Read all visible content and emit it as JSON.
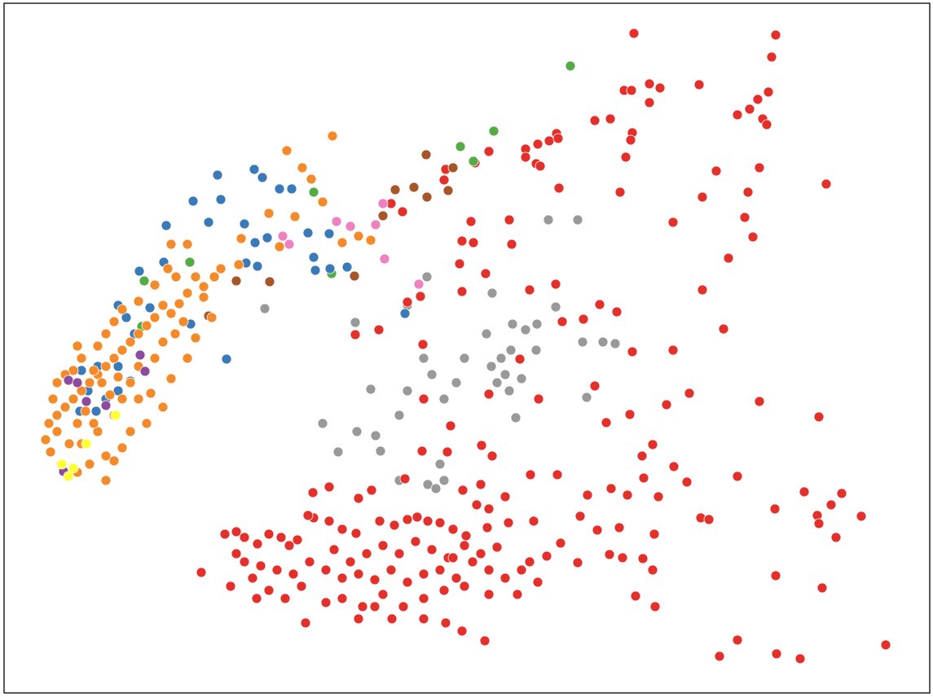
{
  "chart_data": {
    "type": "scatter",
    "xlim": [
      5,
      1141
    ],
    "ylim": [
      851,
      4
    ],
    "series": [
      {
        "color": "#999999",
        "x": [
          673,
          709,
          524,
          604,
          325,
          436,
          682,
          659,
          629,
          597,
          645,
          658,
          715,
          740,
          755,
          627,
          615,
          603,
          620,
          640,
          610,
          625,
          570,
          560,
          545,
          520,
          530,
          500,
          490,
          455,
          396,
          438,
          461,
          467,
          415,
          540,
          545,
          490,
          525,
          535,
          633,
          720,
          500
        ],
        "y": [
          270,
          270,
          340,
          360,
          379,
          396,
          377,
          398,
          398,
          410,
          405,
          430,
          420,
          420,
          422,
          430,
          440,
          450,
          460,
          465,
          470,
          480,
          440,
          470,
          490,
          440,
          460,
          480,
          510,
          478,
          520,
          530,
          535,
          554,
          555,
          570,
          590,
          590,
          595,
          600,
          513,
          488,
          375
        ]
      },
      {
        "color": "#e4302b",
        "x": [
          778,
          952,
          947,
          797,
          810,
          766,
          775,
          858,
          943,
          930,
          797,
          920,
          905,
          936,
          941,
          749,
          730,
          776,
          774,
          683,
          674,
          660,
          645,
          645,
          658,
          663,
          600,
          583,
          768,
          879,
          932,
          761,
          862,
          918,
          1014,
          686,
          914,
          826,
          924,
          625,
          578,
          567,
          581,
          628,
          894,
          564,
          596,
          682,
          862,
          757,
          736,
          690,
          716,
          888,
          826,
          776,
          730,
          846,
          932,
          818,
          773,
          744,
          1005,
          801,
          788,
          827,
          790,
          843,
          905,
          987,
          1033,
          1020,
          1003,
          1057,
          951,
          1026,
          1005,
          860,
          870,
          721,
          750,
          770,
          808,
          712,
          733,
          760,
          803,
          789,
          688,
          671,
          709,
          748,
          764,
          952,
          801,
          1009,
          780,
          804,
          883,
          905,
          953,
          982,
          1087,
          595,
          567,
          547,
          518,
          549,
          520,
          553,
          591,
          604,
          568,
          651,
          684,
          465,
          436,
          519,
          516,
          500,
          600,
          638,
          661,
          650,
          567,
          545,
          547,
          494,
          480,
          685,
          247,
          276,
          290,
          300,
          316,
          330,
          345,
          355,
          365,
          385,
          404,
          420,
          437,
          466,
          484,
          500,
          512,
          525,
          540,
          556,
          572,
          598,
          624,
          655,
          283,
          300,
          320,
          340,
          360,
          380,
          400,
          420,
          440,
          460,
          480,
          500,
          520,
          540,
          560,
          580,
          600,
          620,
          640,
          660,
          315,
          350,
          375,
          400,
          420,
          445,
          470,
          495,
          520,
          545,
          570,
          600,
          635,
          290,
          310,
          330,
          370,
          410,
          430,
          450,
          470,
          490,
          510,
          530,
          550,
          570,
          590,
          610,
          440,
          404,
          456,
          497,
          384,
          378,
          590,
          620,
          585,
          600,
          440,
          460,
          481,
          520,
          556,
          650
        ],
        "y": [
          41,
          43,
          70,
          103,
          108,
          111,
          111,
          104,
          113,
          122,
          126,
          134,
          141,
          146,
          153,
          146,
          148,
          163,
          172,
          164,
          173,
          177,
          183,
          193,
          201,
          204,
          186,
          200,
          193,
          210,
          206,
          236,
          242,
          236,
          226,
          231,
          267,
          273,
          291,
          270,
          272,
          296,
          298,
          300,
          317,
          324,
          336,
          349,
          356,
          383,
          374,
          395,
          392,
          404,
          430,
          432,
          474,
          483,
          493,
          497,
          509,
          519,
          512,
          546,
          560,
          573,
          587,
          592,
          585,
          604,
          606,
          620,
          633,
          634,
          625,
          660,
          643,
          636,
          638,
          608,
          600,
          608,
          610,
          634,
          651,
          648,
          656,
          686,
          667,
          683,
          691,
          681,
          685,
          707,
          700,
          722,
          732,
          745,
          806,
          786,
          803,
          809,
          792,
          787,
          775,
          765,
          554,
          555,
          490,
          523,
          547,
          560,
          602,
          583,
          583,
          405,
          411,
          423,
          364,
          371,
          484,
          441,
          490,
          356,
          358,
          221,
          208,
          260,
          250,
          170,
          703,
          656,
          653,
          660,
          668,
          656,
          660,
          670,
          663,
          636,
          640,
          650,
          655,
          640,
          645,
          638,
          635,
          640,
          642,
          650,
          658,
          648,
          642,
          640,
          720,
          690,
          695,
          700,
          705,
          690,
          700,
          710,
          705,
          712,
          700,
          715,
          705,
          700,
          710,
          690,
          700,
          710,
          700,
          715,
          735,
          735,
          765,
          740,
          735,
          745,
          730,
          745,
          735,
          725,
          720,
          730,
          730,
          680,
          710,
          725,
          720,
          675,
          690,
          680,
          670,
          680,
          665,
          675,
          685,
          670,
          680,
          672,
          612,
          598,
          602,
          588,
          605,
          633,
          595,
          610,
          620,
          625,
          760,
          745,
          760,
          760,
          685,
          690
        ]
      },
      {
        "color": "#a65628",
        "x": [
          523,
          556,
          508,
          485,
          524,
          550,
          470,
          331,
          435,
          256,
          290
        ],
        "y": [
          190,
          206,
          230,
          233,
          242,
          234,
          265,
          346,
          339,
          388,
          345
        ]
      },
      {
        "color": "#f081c0",
        "x": [
          413,
          430,
          470,
          461,
          347,
          355,
          327,
          472,
          514
        ],
        "y": [
          272,
          278,
          250,
          276,
          290,
          300,
          292,
          318,
          349
        ]
      },
      {
        "color": "#55ac47",
        "x": [
          700,
          606,
          565,
          581,
          385,
          407,
          233,
          177,
          174
        ],
        "y": [
          81,
          161,
          180,
          198,
          236,
          336,
          322,
          345,
          401
        ]
      },
      {
        "color": "#3a7ab8",
        "x": [
          267,
          237,
          271,
          256,
          204,
          312,
          322,
          343,
          358,
          300,
          313,
          328,
          378,
          404,
          385,
          387,
          405,
          426,
          302,
          316,
          278,
          201,
          171,
          184,
          155,
          165,
          145,
          145,
          120,
          108,
          100,
          130,
          145,
          160,
          98,
          118,
          497,
          234
        ],
        "y": [
          215,
          247,
          245,
          273,
          277,
          208,
          218,
          232,
          232,
          275,
          298,
          292,
          286,
          287,
          316,
          332,
          330,
          328,
          323,
          327,
          441,
          322,
          333,
          378,
          390,
          410,
          375,
          450,
          450,
          480,
          455,
          490,
          480,
          468,
          505,
          505,
          385,
          398
        ]
      },
      {
        "color": "#f58a2a",
        "x": [
          408,
          352,
          371,
          382,
          396,
          362,
          330,
          296,
          343,
          271,
          293,
          263,
          250,
          240,
          250,
          230,
          220,
          210,
          200,
          190,
          180,
          170,
          160,
          150,
          140,
          130,
          120,
          110,
          100,
          90,
          80,
          70,
          60,
          56,
          62,
          75,
          95,
          110,
          130,
          150,
          160,
          180,
          200,
          210,
          230,
          240,
          260,
          210,
          206,
          216,
          190,
          170,
          150,
          140,
          130,
          120,
          100,
          90,
          80,
          70,
          65,
          70,
          85,
          100,
          120,
          140,
          150,
          160,
          170,
          190,
          200,
          215,
          225,
          185,
          140,
          115,
          95,
          105,
          135,
          125,
          115,
          95,
          145,
          170,
          130,
          230,
          420,
          455,
          440
        ],
        "y": [
          167,
          185,
          206,
          220,
          248,
          266,
          262,
          293,
          303,
          330,
          325,
          340,
          352,
          340,
          365,
          360,
          373,
          385,
          375,
          390,
          400,
          410,
          420,
          430,
          440,
          450,
          460,
          470,
          480,
          490,
          500,
          510,
          520,
          540,
          555,
          570,
          580,
          570,
          560,
          550,
          530,
          520,
          500,
          465,
          440,
          415,
          390,
          300,
          330,
          340,
          350,
          370,
          380,
          395,
          410,
          425,
          440,
          455,
          460,
          470,
          490,
          530,
          545,
          545,
          530,
          510,
          490,
          470,
          450,
          440,
          420,
          410,
          395,
          483,
          566,
          520,
          520,
          505,
          485,
          470,
          455,
          425,
          463,
          490,
          590,
          300,
          298,
          295,
          290
        ]
      },
      {
        "color": "#8e4a9e",
        "x": [
          172,
          178,
          84,
          106,
          130,
          78,
          95
        ],
        "y": [
          436,
          456,
          467,
          493,
          498,
          579,
          470
        ]
      },
      {
        "color": "#ffff33",
        "x": [
          142,
          106,
          84,
          76,
          90
        ],
        "y": [
          510,
          545,
          585,
          570,
          575
        ]
      }
    ]
  }
}
